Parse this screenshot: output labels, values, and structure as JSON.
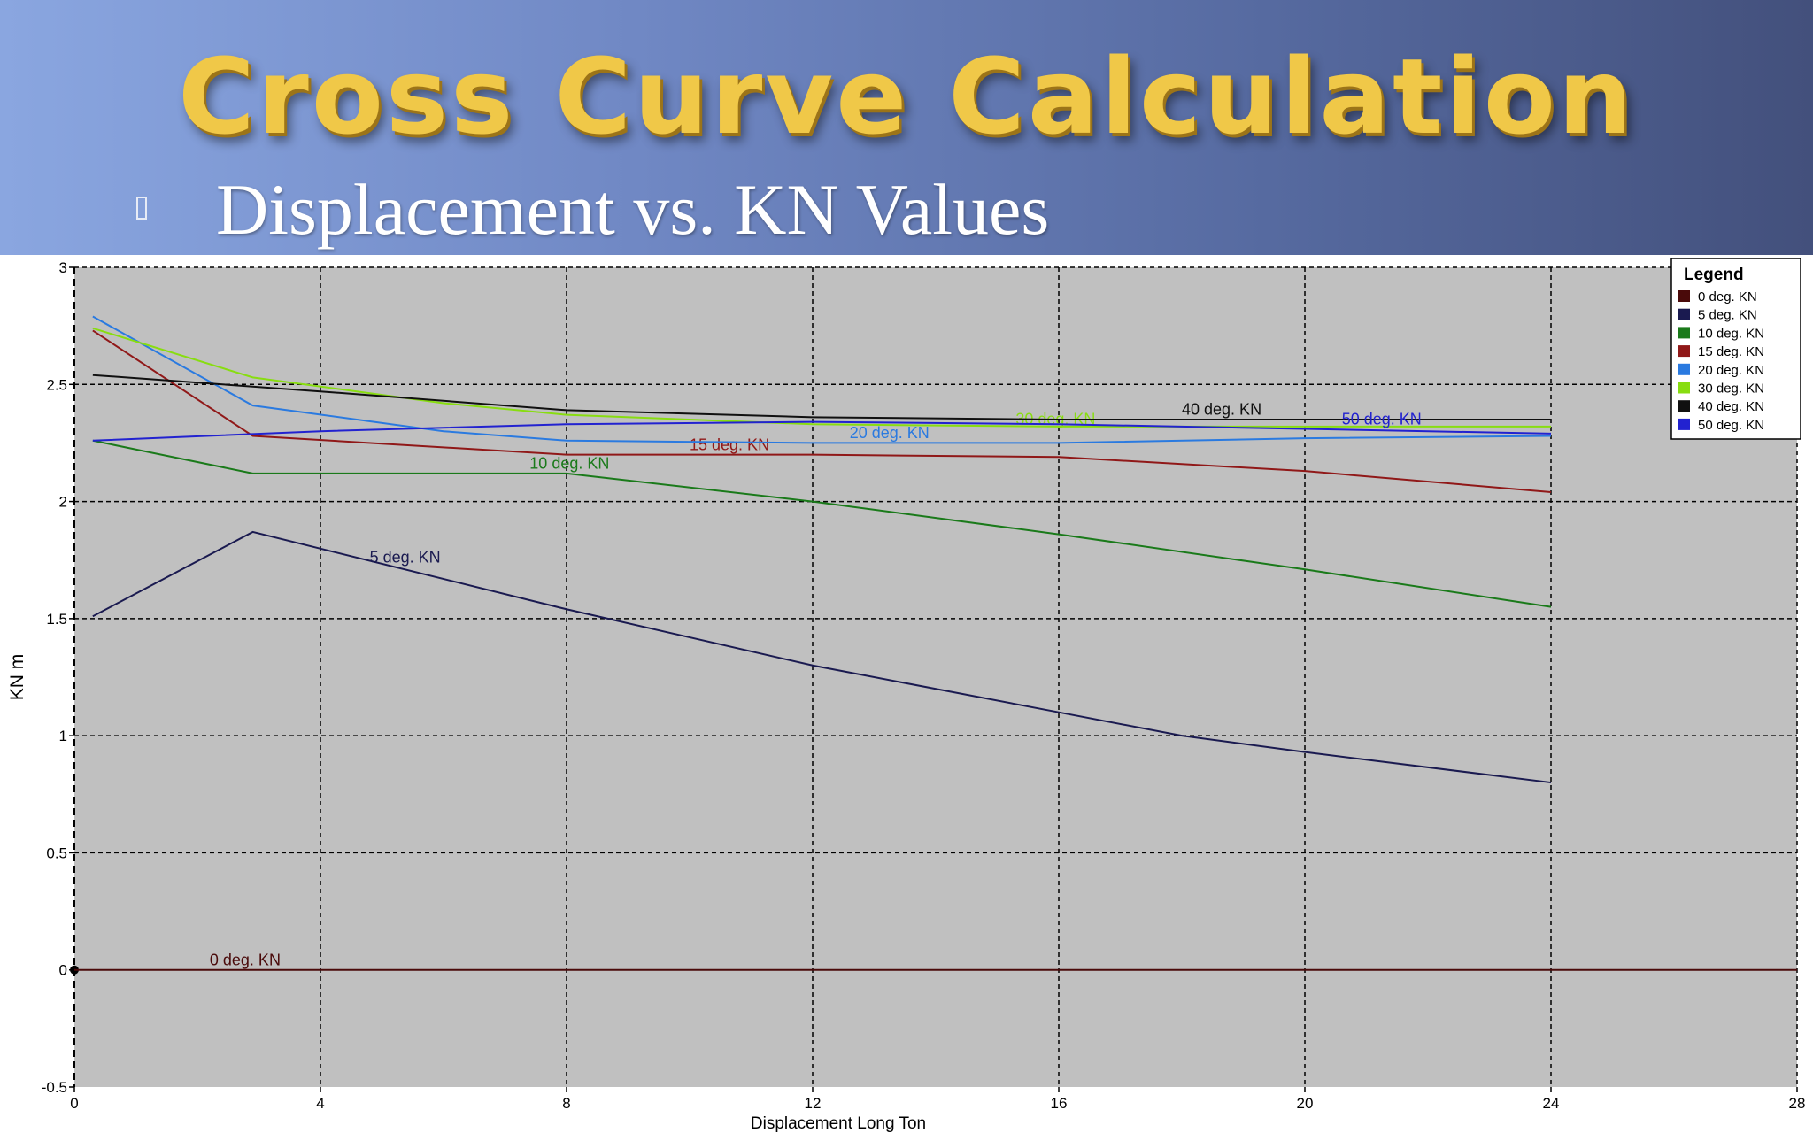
{
  "slide": {
    "title": "Cross Curve Calculation",
    "subtitle": "Displacement vs. KN Values",
    "bullet_icon": "square-bullet-icon",
    "header_gradient": [
      "#8aa6e0",
      "#43507c"
    ],
    "title_color": "#f0c848"
  },
  "chart_data": {
    "type": "line",
    "xlabel": "Displacement  Long Ton",
    "ylabel": "KN  m",
    "xlim": [
      0,
      28
    ],
    "ylim": [
      -0.5,
      3
    ],
    "x_ticks": [
      "0",
      "4",
      "8",
      "12",
      "16",
      "20",
      "24",
      "28"
    ],
    "y_ticks": [
      "-0.5",
      "0",
      "0.5",
      "1",
      "1.5",
      "2",
      "2.5",
      "3"
    ],
    "grid": true,
    "plot_background": "#c0c0c0",
    "legend": {
      "title": "Legend",
      "placement": "top-right"
    },
    "series": [
      {
        "name": "0 deg.  KN",
        "color": "#4a0a0a",
        "label": "0 deg.  KN",
        "label_at": [
          2.2,
          0.02
        ],
        "x": [
          0,
          28
        ],
        "y": [
          0,
          0
        ]
      },
      {
        "name": "5 deg.  KN",
        "color": "#1a1a50",
        "label": "5 deg.  KN",
        "label_at": [
          4.8,
          1.74
        ],
        "x": [
          0.3,
          2.9,
          8,
          12,
          16,
          18,
          20,
          24
        ],
        "y": [
          1.51,
          1.87,
          1.54,
          1.3,
          1.1,
          1.0,
          0.93,
          0.8
        ]
      },
      {
        "name": "10 deg.  KN",
        "color": "#1a7a1a",
        "label": "10 deg.  KN",
        "label_at": [
          7.4,
          2.14
        ],
        "x": [
          0.3,
          2.9,
          8,
          12,
          16,
          20,
          24
        ],
        "y": [
          2.26,
          2.12,
          2.12,
          2.0,
          1.86,
          1.71,
          1.55
        ]
      },
      {
        "name": "15 deg.  KN",
        "color": "#901818",
        "label": "15 deg.  KN",
        "label_at": [
          10,
          2.22
        ],
        "x": [
          0.3,
          2.9,
          8,
          12,
          16,
          20,
          24
        ],
        "y": [
          2.73,
          2.28,
          2.2,
          2.2,
          2.19,
          2.13,
          2.04
        ]
      },
      {
        "name": "20 deg.  KN",
        "color": "#2a7ae0",
        "label": "20 deg.  KN",
        "label_at": [
          12.6,
          2.27
        ],
        "x": [
          0.3,
          2.9,
          6,
          8,
          12,
          16,
          20,
          24
        ],
        "y": [
          2.79,
          2.41,
          2.3,
          2.26,
          2.25,
          2.25,
          2.27,
          2.28
        ]
      },
      {
        "name": "30 deg.  KN",
        "color": "#88dd10",
        "label": "30 deg.  KN",
        "label_at": [
          15.3,
          2.33
        ],
        "x": [
          0.3,
          2.9,
          6,
          8,
          12,
          16,
          20,
          24
        ],
        "y": [
          2.74,
          2.53,
          2.42,
          2.37,
          2.33,
          2.32,
          2.32,
          2.32
        ]
      },
      {
        "name": "40 deg.  KN",
        "color": "#101010",
        "label": "40 deg.  KN",
        "label_at": [
          18,
          2.37
        ],
        "x": [
          0.3,
          4,
          8,
          12,
          16,
          20,
          24
        ],
        "y": [
          2.54,
          2.47,
          2.39,
          2.36,
          2.35,
          2.35,
          2.35
        ]
      },
      {
        "name": "50 deg.  KN",
        "color": "#2222d0",
        "label": "50 deg.  KN",
        "label_at": [
          20.6,
          2.33
        ],
        "x": [
          0.3,
          4,
          8,
          12,
          16,
          20,
          24
        ],
        "y": [
          2.26,
          2.3,
          2.33,
          2.34,
          2.33,
          2.31,
          2.29
        ]
      }
    ]
  }
}
